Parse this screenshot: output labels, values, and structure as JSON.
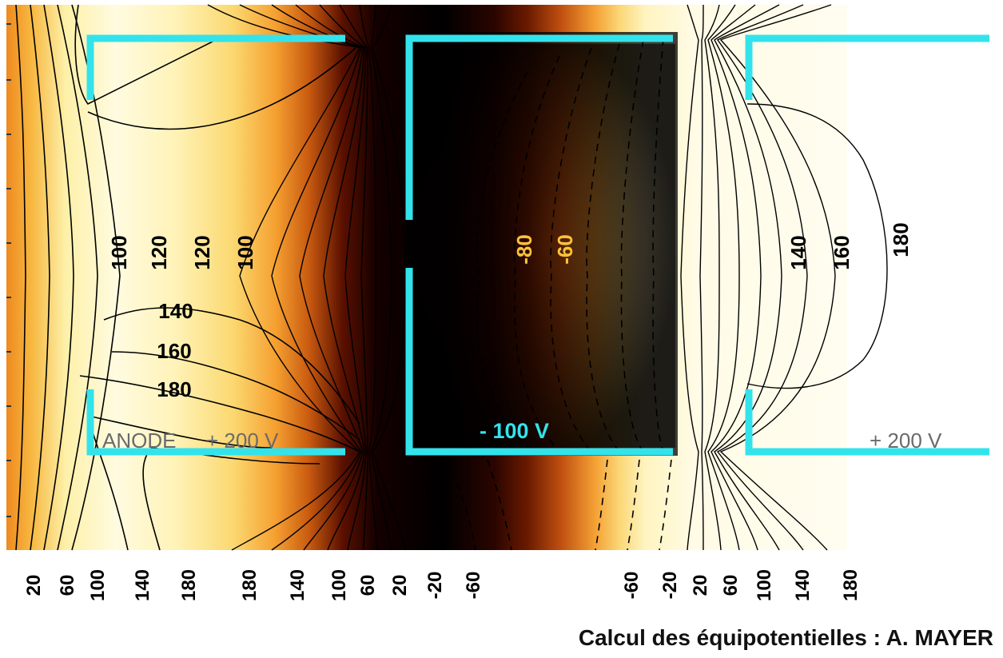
{
  "labels": {
    "anode": "ANODE",
    "anode_voltage": "+ 200 V",
    "cathode_voltage": "- 100 V",
    "right_voltage": "+ 200 V"
  },
  "credit": "Calcul des équipotentielles : A. MAYER",
  "colors": {
    "electrode": "#33e3ec",
    "contour": "#000000",
    "warm_label": "#ffc23a",
    "high": "#fffbe6",
    "low": "#000000"
  },
  "inline_labels": {
    "left": [
      "100",
      "120",
      "120",
      "100",
      "140",
      "160",
      "180"
    ],
    "cathode": [
      "-80",
      "-60"
    ],
    "right": [
      "140",
      "160",
      "180"
    ]
  },
  "bottom_scale": [
    "20",
    "60",
    "100",
    "140",
    "180",
    "180",
    "140",
    "100",
    "60",
    "20",
    "-20",
    "-60",
    "-60",
    "-20",
    "20",
    "60",
    "100",
    "140",
    "180"
  ]
}
